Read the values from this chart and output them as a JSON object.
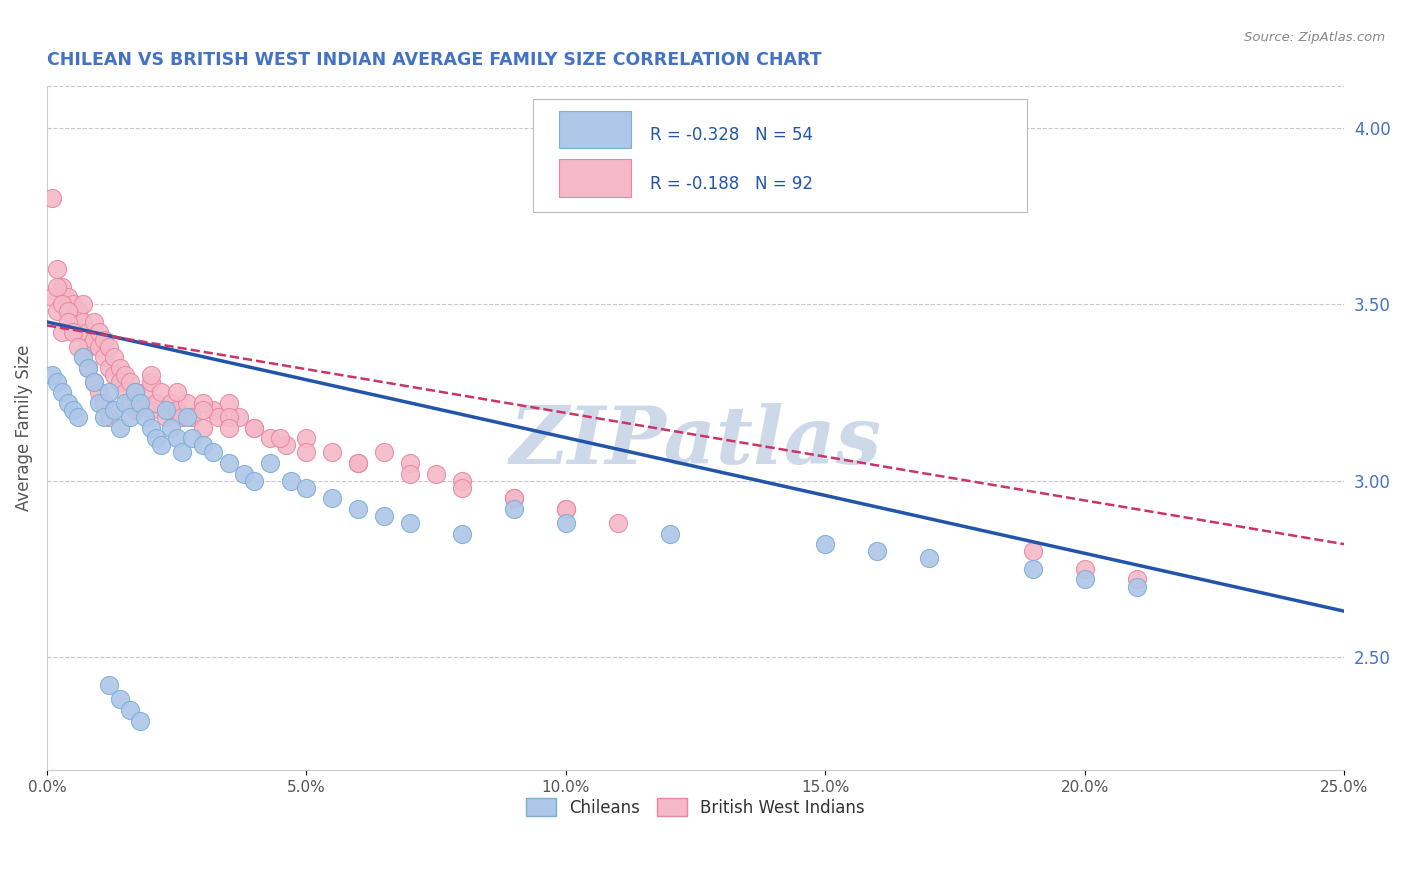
{
  "title": "CHILEAN VS BRITISH WEST INDIAN AVERAGE FAMILY SIZE CORRELATION CHART",
  "source_text": "Source: ZipAtlas.com",
  "ylabel": "Average Family Size",
  "xlim": [
    0.0,
    0.25
  ],
  "ylim": [
    2.18,
    4.12
  ],
  "xticks": [
    0.0,
    0.05,
    0.1,
    0.15,
    0.2,
    0.25
  ],
  "xticklabels": [
    "0.0%",
    "5.0%",
    "10.0%",
    "15.0%",
    "20.0%",
    "25.0%"
  ],
  "yticks_right": [
    2.5,
    3.0,
    3.5,
    4.0
  ],
  "ytick_labels_right": [
    "2.50",
    "3.00",
    "3.50",
    "4.00"
  ],
  "legend_entries": [
    {
      "label": "R = -0.328   N = 54",
      "color": "#aec6e8"
    },
    {
      "label": "R = -0.188   N = 92",
      "color": "#f4b8c8"
    }
  ],
  "legend_bottom": [
    {
      "label": "Chileans",
      "color": "#aec6e8"
    },
    {
      "label": "British West Indians",
      "color": "#f4b8c8"
    }
  ],
  "chilean_color": "#aec6e8",
  "bwi_color": "#f4b8c8",
  "chilean_edge": "#7bafd4",
  "bwi_edge": "#e888a0",
  "trend_chilean_color": "#2255aa",
  "trend_bwi_color": "#cc3366",
  "background_color": "#ffffff",
  "grid_color": "#c8c8c8",
  "watermark": "ZIPatlas",
  "watermark_color": "#cdd8e8",
  "title_color": "#4472c4",
  "axis_label_color": "#555555",
  "right_tick_color": "#4472c4",
  "chilean_x": [
    0.001,
    0.002,
    0.003,
    0.004,
    0.005,
    0.006,
    0.007,
    0.008,
    0.009,
    0.01,
    0.011,
    0.012,
    0.013,
    0.014,
    0.015,
    0.016,
    0.017,
    0.018,
    0.019,
    0.02,
    0.021,
    0.022,
    0.023,
    0.024,
    0.025,
    0.026,
    0.027,
    0.028,
    0.03,
    0.032,
    0.035,
    0.038,
    0.04,
    0.043,
    0.047,
    0.05,
    0.055,
    0.06,
    0.065,
    0.07,
    0.08,
    0.09,
    0.1,
    0.12,
    0.15,
    0.16,
    0.17,
    0.19,
    0.2,
    0.21,
    0.012,
    0.014,
    0.016,
    0.018
  ],
  "chilean_y": [
    3.3,
    3.28,
    3.25,
    3.22,
    3.2,
    3.18,
    3.35,
    3.32,
    3.28,
    3.22,
    3.18,
    3.25,
    3.2,
    3.15,
    3.22,
    3.18,
    3.25,
    3.22,
    3.18,
    3.15,
    3.12,
    3.1,
    3.2,
    3.15,
    3.12,
    3.08,
    3.18,
    3.12,
    3.1,
    3.08,
    3.05,
    3.02,
    3.0,
    3.05,
    3.0,
    2.98,
    2.95,
    2.92,
    2.9,
    2.88,
    2.85,
    2.92,
    2.88,
    2.85,
    2.82,
    2.8,
    2.78,
    2.75,
    2.72,
    2.7,
    2.42,
    2.38,
    2.35,
    2.32
  ],
  "bwi_x": [
    0.001,
    0.002,
    0.003,
    0.004,
    0.005,
    0.005,
    0.006,
    0.006,
    0.007,
    0.007,
    0.008,
    0.008,
    0.009,
    0.009,
    0.01,
    0.01,
    0.011,
    0.011,
    0.012,
    0.012,
    0.013,
    0.013,
    0.014,
    0.014,
    0.015,
    0.015,
    0.016,
    0.016,
    0.017,
    0.017,
    0.018,
    0.019,
    0.02,
    0.02,
    0.021,
    0.022,
    0.023,
    0.024,
    0.025,
    0.026,
    0.027,
    0.028,
    0.03,
    0.032,
    0.033,
    0.035,
    0.037,
    0.04,
    0.043,
    0.046,
    0.05,
    0.055,
    0.06,
    0.065,
    0.07,
    0.075,
    0.08,
    0.09,
    0.1,
    0.11,
    0.03,
    0.035,
    0.04,
    0.045,
    0.05,
    0.06,
    0.07,
    0.08,
    0.09,
    0.1,
    0.001,
    0.002,
    0.003,
    0.002,
    0.003,
    0.004,
    0.004,
    0.005,
    0.006,
    0.007,
    0.008,
    0.009,
    0.01,
    0.011,
    0.012,
    0.02,
    0.025,
    0.03,
    0.035,
    0.19,
    0.2,
    0.21
  ],
  "bwi_y": [
    3.8,
    3.6,
    3.55,
    3.52,
    3.5,
    3.45,
    3.48,
    3.42,
    3.5,
    3.45,
    3.42,
    3.38,
    3.45,
    3.4,
    3.42,
    3.38,
    3.4,
    3.35,
    3.38,
    3.32,
    3.35,
    3.3,
    3.32,
    3.28,
    3.3,
    3.25,
    3.28,
    3.22,
    3.25,
    3.2,
    3.22,
    3.25,
    3.2,
    3.28,
    3.22,
    3.25,
    3.18,
    3.22,
    3.2,
    3.18,
    3.22,
    3.18,
    3.15,
    3.2,
    3.18,
    3.22,
    3.18,
    3.15,
    3.12,
    3.1,
    3.12,
    3.08,
    3.05,
    3.08,
    3.05,
    3.02,
    3.0,
    2.95,
    2.92,
    2.88,
    3.22,
    3.18,
    3.15,
    3.12,
    3.08,
    3.05,
    3.02,
    2.98,
    2.95,
    2.92,
    3.52,
    3.48,
    3.42,
    3.55,
    3.5,
    3.48,
    3.45,
    3.42,
    3.38,
    3.35,
    3.32,
    3.28,
    3.25,
    3.22,
    3.18,
    3.3,
    3.25,
    3.2,
    3.15,
    2.8,
    2.75,
    2.72
  ]
}
